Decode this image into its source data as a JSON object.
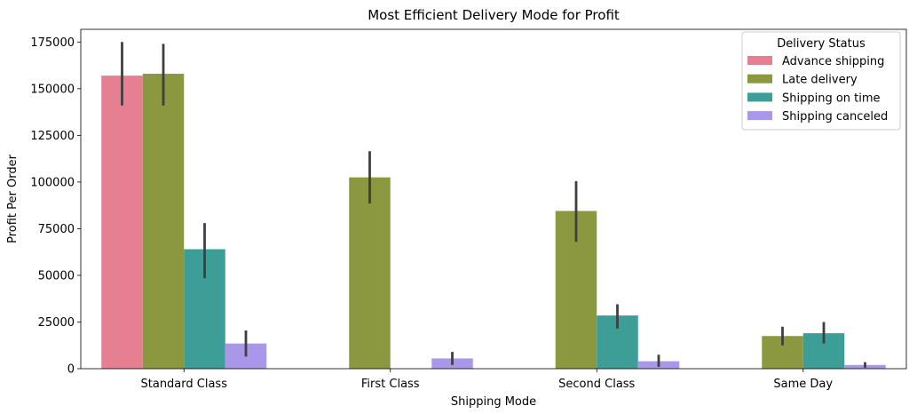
{
  "chart_data": {
    "type": "bar",
    "title": "Most Efficient Delivery Mode for Profit",
    "xlabel": "Shipping Mode",
    "ylabel": "Profit Per Order",
    "categories": [
      "Standard Class",
      "First Class",
      "Second Class",
      "Same Day"
    ],
    "ylim": [
      0,
      175000
    ],
    "yticks": [
      0,
      25000,
      50000,
      75000,
      100000,
      125000,
      150000,
      175000
    ],
    "ytick_labels": [
      "0",
      "25000",
      "50000",
      "75000",
      "100000",
      "125000",
      "150000",
      "175000"
    ],
    "legend": {
      "title": "Delivery Status",
      "placement": "top-right"
    },
    "grid": false,
    "series": [
      {
        "name": "Advance shipping",
        "color": "#e67f91",
        "values": [
          157000,
          null,
          null,
          null
        ],
        "error_low": [
          141000,
          null,
          null,
          null
        ],
        "error_high": [
          175000,
          null,
          null,
          null
        ]
      },
      {
        "name": "Late delivery",
        "color": "#8c983f",
        "values": [
          158000,
          102500,
          84500,
          17500
        ],
        "error_low": [
          141000,
          88500,
          68000,
          12500
        ],
        "error_high": [
          174000,
          116500,
          100500,
          22500
        ]
      },
      {
        "name": "Shipping on time",
        "color": "#3d9e98",
        "values": [
          64000,
          null,
          28500,
          19000
        ],
        "error_low": [
          48500,
          null,
          21500,
          13500
        ],
        "error_high": [
          78000,
          null,
          34500,
          25000
        ]
      },
      {
        "name": "Shipping canceled",
        "color": "#a998ea",
        "values": [
          13500,
          5500,
          4000,
          2000
        ],
        "error_low": [
          6500,
          2000,
          1000,
          500
        ],
        "error_high": [
          20500,
          9000,
          7500,
          3500
        ]
      }
    ]
  }
}
